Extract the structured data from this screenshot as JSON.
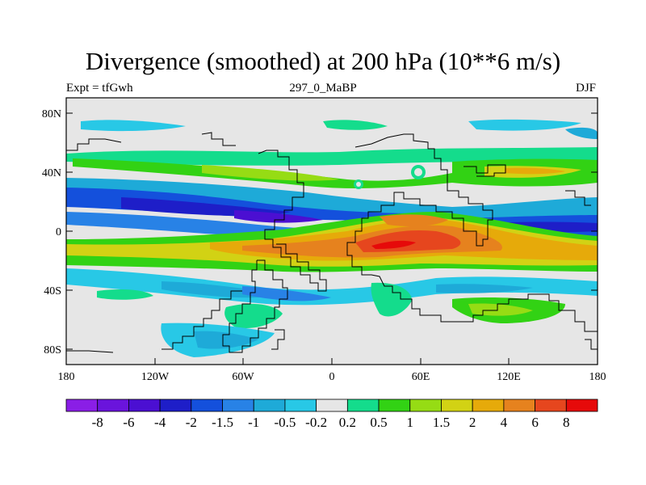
{
  "title": "Divergence (smoothed) at 200 hPa (10**6 m/s)",
  "subtitle_left": "Expt = tfGwh",
  "subtitle_center": "297_0_MaBP",
  "subtitle_right": "DJF",
  "lat_labels": [
    "80N",
    "40N",
    "0",
    "40S",
    "80S"
  ],
  "lon_labels": [
    "180",
    "120W",
    "60W",
    "0",
    "60E",
    "120E",
    "180"
  ],
  "colorbar": {
    "labels": [
      "-8",
      "-6",
      "-4",
      "-2",
      "-1.5",
      "-1",
      "-0.5",
      "-0.2",
      "0.2",
      "0.5",
      "1",
      "1.5",
      "2",
      "4",
      "6",
      "8"
    ],
    "colors": [
      "#8a1ee6",
      "#6a14dc",
      "#4b0fd2",
      "#1e1ec8",
      "#1450dc",
      "#2882e6",
      "#1eaad8",
      "#28c8e6",
      "#e6e6e6",
      "#14dc8c",
      "#32d214",
      "#96dc14",
      "#d2d214",
      "#e6aa0a",
      "#e6821e",
      "#e6461e",
      "#e60a0a"
    ]
  }
}
